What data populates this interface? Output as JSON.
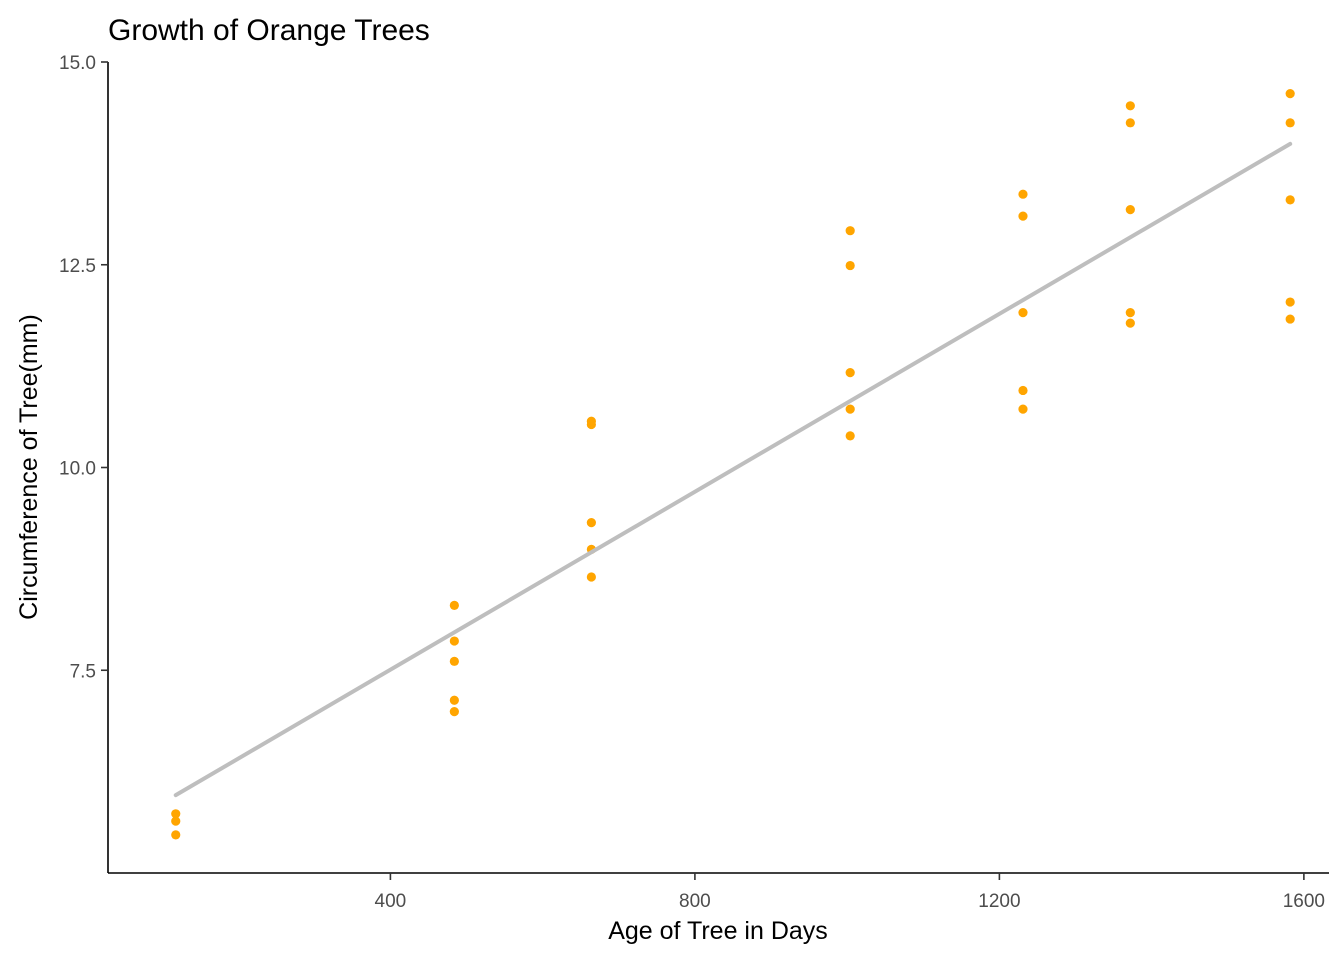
{
  "chart_data": {
    "type": "scatter",
    "title": "Growth of Orange Trees",
    "xlabel": "Age of Tree in Days",
    "ylabel": "Circumference of Tree(mm)",
    "xlim": [
      29,
      1633
    ],
    "ylim": [
      5.0,
      15.0
    ],
    "x_ticks": [
      400,
      800,
      1200,
      1600
    ],
    "x_tick_labels": [
      "400",
      "800",
      "1200",
      "1600"
    ],
    "y_ticks": [
      7.5,
      10.0,
      12.5,
      15.0
    ],
    "y_tick_labels": [
      "7.5",
      "10.0",
      "12.5",
      "15.0"
    ],
    "grid": false,
    "legend": "none",
    "point_color": "#FFA500",
    "trend_color": "#BEBEBE",
    "series": [
      {
        "x": [
          118,
          118,
          118,
          484,
          484,
          484,
          484,
          484,
          664,
          664,
          664,
          664,
          664,
          1004,
          1004,
          1004,
          1004,
          1004,
          1231,
          1231,
          1231,
          1231,
          1231,
          1372,
          1372,
          1372,
          1372,
          1372,
          1582,
          1582,
          1582,
          1582,
          1582
        ],
        "y": [
          5.73,
          5.64,
          5.47,
          8.3,
          7.86,
          7.61,
          7.13,
          6.99,
          10.57,
          10.53,
          9.32,
          8.99,
          8.65,
          12.92,
          12.49,
          11.17,
          10.72,
          10.39,
          13.37,
          13.1,
          11.91,
          10.95,
          10.72,
          14.46,
          14.25,
          13.18,
          11.91,
          11.78,
          14.61,
          14.25,
          13.3,
          12.04,
          11.83
        ]
      }
    ],
    "trend_line": {
      "x": [
        118,
        1582
      ],
      "y": [
        5.96,
        13.99
      ]
    }
  }
}
